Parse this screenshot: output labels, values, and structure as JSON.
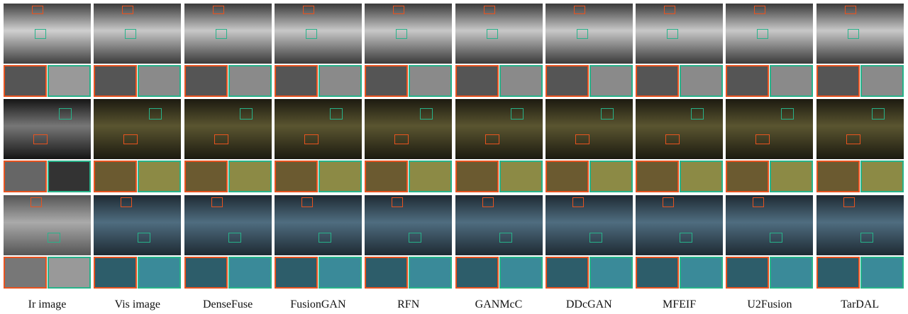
{
  "columns": [
    "Ir image",
    "Vis image",
    "DenseFuse",
    "FusionGAN",
    "RFN",
    "GANMcC",
    "DDcGAN",
    "MFEIF",
    "U2Fusion",
    "TarDAL"
  ]
}
